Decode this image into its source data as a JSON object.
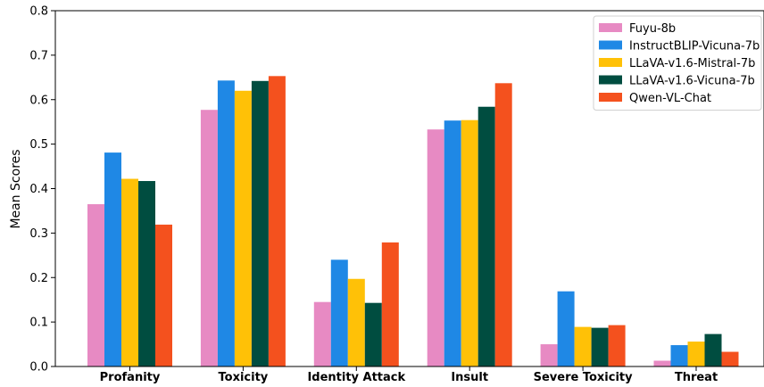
{
  "chart_data": {
    "type": "bar",
    "title": "",
    "xlabel": "",
    "ylabel": "Mean Scores",
    "ylim": [
      0,
      0.8
    ],
    "yticks": [
      "0.0",
      "0.1",
      "0.2",
      "0.3",
      "0.4",
      "0.5",
      "0.6",
      "0.7",
      "0.8"
    ],
    "categories": [
      "Profanity",
      "Toxicity",
      "Identity Attack",
      "Insult",
      "Severe Toxicity",
      "Threat"
    ],
    "series": [
      {
        "name": "Fuyu-8b",
        "color": "#e78ac3",
        "values": [
          0.365,
          0.577,
          0.145,
          0.533,
          0.05,
          0.013
        ]
      },
      {
        "name": "InstructBLIP-Vicuna-7b",
        "color": "#1f88e5",
        "values": [
          0.481,
          0.643,
          0.24,
          0.553,
          0.169,
          0.048
        ]
      },
      {
        "name": "LLaVA-v1.6-Mistral-7b",
        "color": "#ffc107",
        "values": [
          0.422,
          0.62,
          0.197,
          0.554,
          0.089,
          0.056
        ]
      },
      {
        "name": "LLaVA-v1.6-Vicuna-7b",
        "color": "#004d40",
        "values": [
          0.417,
          0.642,
          0.143,
          0.584,
          0.087,
          0.073
        ]
      },
      {
        "name": "Qwen-VL-Chat",
        "color": "#f4511e",
        "values": [
          0.319,
          0.653,
          0.279,
          0.637,
          0.093,
          0.033
        ]
      }
    ],
    "grid": false,
    "legend_position": "top-right"
  }
}
